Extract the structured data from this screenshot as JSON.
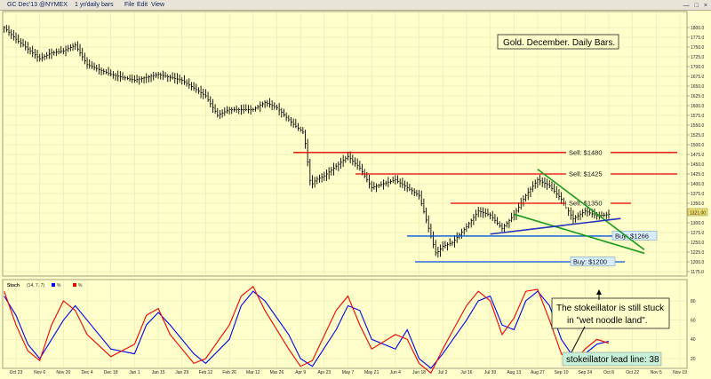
{
  "toolbar": {
    "symbol": "GC Dec'13 @NYMEX",
    "interval": "1 yr/daily bars",
    "menu": [
      "File",
      "Edit",
      "View"
    ]
  },
  "chart_data": [
    {
      "type": "ohlc",
      "title": "Gold. December. Daily Bars.",
      "ylim": [
        1175,
        1825
      ],
      "x_labels": [
        "Oct 23",
        "Nov 6",
        "Nov 20",
        "Dec 4",
        "Dec 18",
        "Jan 1",
        "Jan 15",
        "Jan 29",
        "Feb 12",
        "Feb 26",
        "Mar 12",
        "Mar 26",
        "Apr 9",
        "Apr 23",
        "May 7",
        "May 21",
        "Jun 4",
        "Jun 18",
        "Jul 2",
        "Jul 16",
        "Jul 30",
        "Aug 13",
        "Aug 27",
        "Sep 10",
        "Sep 24",
        "Oct 8",
        "Oct 22",
        "Nov 5",
        "Nov 19"
      ],
      "y_ticks": [
        1175,
        1200,
        1225,
        1250,
        1275,
        1300,
        1325,
        1350,
        1375,
        1400,
        1425,
        1450,
        1475,
        1500,
        1525,
        1550,
        1575,
        1600,
        1625,
        1650,
        1675,
        1700,
        1725,
        1750,
        1775,
        1800
      ],
      "last_price_label": "1321.00",
      "close_path": [
        [
          "Oct 16",
          1800
        ],
        [
          "Oct 23",
          1770
        ],
        [
          "Nov 6",
          1720
        ],
        [
          "Nov 13",
          1735
        ],
        [
          "Nov 20",
          1740
        ],
        [
          "Nov 27",
          1755
        ],
        [
          "Dec 4",
          1705
        ],
        [
          "Dec 18",
          1680
        ],
        [
          "Jan 1",
          1665
        ],
        [
          "Jan 15",
          1680
        ],
        [
          "Jan 29",
          1665
        ],
        [
          "Feb 12",
          1625
        ],
        [
          "Feb 19",
          1575
        ],
        [
          "Feb 26",
          1590
        ],
        [
          "Mar 12",
          1590
        ],
        [
          "Mar 19",
          1608
        ],
        [
          "Mar 26",
          1595
        ],
        [
          "Apr 4",
          1555
        ],
        [
          "Apr 11",
          1530
        ],
        [
          "Apr 15",
          1395
        ],
        [
          "Apr 18",
          1410
        ],
        [
          "Apr 23",
          1420
        ],
        [
          "May 7",
          1470
        ],
        [
          "May 14",
          1440
        ],
        [
          "May 21",
          1390
        ],
        [
          "Jun 4",
          1410
        ],
        [
          "Jun 18",
          1370
        ],
        [
          "Jun 24",
          1280
        ],
        [
          "Jun 28",
          1220
        ],
        [
          "Jul 2",
          1240
        ],
        [
          "Jul 8",
          1250
        ],
        [
          "Jul 16",
          1290
        ],
        [
          "Jul 23",
          1330
        ],
        [
          "Jul 30",
          1320
        ],
        [
          "Aug 6",
          1285
        ],
        [
          "Aug 13",
          1320
        ],
        [
          "Aug 20",
          1370
        ],
        [
          "Aug 27",
          1410
        ],
        [
          "Sep 3",
          1395
        ],
        [
          "Sep 10",
          1360
        ],
        [
          "Sep 17",
          1310
        ],
        [
          "Sep 24",
          1330
        ],
        [
          "Oct 1",
          1318
        ],
        [
          "Oct 8",
          1321
        ]
      ],
      "levels": [
        {
          "label": "Sell: $1480",
          "value": 1480,
          "color": "#e60000"
        },
        {
          "label": "Sell: $1425",
          "value": 1425,
          "color": "#e60000"
        },
        {
          "label": "Sell: $1350",
          "value": 1350,
          "color": "#e60000"
        },
        {
          "label": "Buy: $1266",
          "value": 1266,
          "color": "#0055dd"
        },
        {
          "label": "Buy: $1200",
          "value": 1200,
          "color": "#0055dd"
        }
      ],
      "trendlines": [
        {
          "color": "#1a9a1a",
          "points": [
            [
              "Aug 27",
              1437
            ],
            [
              "Oct 29",
              1231
            ]
          ]
        },
        {
          "color": "#1a9a1a",
          "points": [
            [
              "Aug 13",
              1322
            ],
            [
              "Oct 29",
              1222
            ]
          ]
        },
        {
          "color": "#2233bb",
          "points": [
            [
              "Jul 30",
              1271
            ],
            [
              "Oct 15",
              1311
            ]
          ]
        }
      ]
    },
    {
      "type": "line",
      "title": "Stoch",
      "params": "(14, 7, 7)",
      "legend": [
        {
          "name": "%",
          "color": "#0000ee"
        },
        {
          "name": "%",
          "color": "#ee0000"
        }
      ],
      "ylim": [
        0,
        100
      ],
      "y_ticks": [
        20,
        40,
        60,
        80
      ],
      "annotation": "The stokeillator is still stuck in \"wet noodle land\".",
      "lead_line_label": "stokeillator lead line: 38",
      "lead_value": 38,
      "series": [
        {
          "name": "blue",
          "color": "#0000ee",
          "points": [
            [
              "Oct 16",
              85
            ],
            [
              "Oct 23",
              65
            ],
            [
              "Oct 30",
              35
            ],
            [
              "Nov 6",
              20
            ],
            [
              "Nov 20",
              60
            ],
            [
              "Nov 27",
              75
            ],
            [
              "Dec 4",
              60
            ],
            [
              "Dec 18",
              30
            ],
            [
              "Jan 1",
              25
            ],
            [
              "Jan 8",
              55
            ],
            [
              "Jan 15",
              68
            ],
            [
              "Jan 22",
              55
            ],
            [
              "Feb 5",
              25
            ],
            [
              "Feb 12",
              15
            ],
            [
              "Feb 26",
              40
            ],
            [
              "Mar 5",
              75
            ],
            [
              "Mar 12",
              90
            ],
            [
              "Mar 19",
              80
            ],
            [
              "Apr 2",
              45
            ],
            [
              "Apr 9",
              20
            ],
            [
              "Apr 16",
              12
            ],
            [
              "Apr 30",
              50
            ],
            [
              "May 7",
              75
            ],
            [
              "May 14",
              70
            ],
            [
              "May 21",
              40
            ],
            [
              "Jun 4",
              30
            ],
            [
              "Jun 11",
              50
            ],
            [
              "Jun 18",
              20
            ],
            [
              "Jun 25",
              10
            ],
            [
              "Jul 2",
              25
            ],
            [
              "Jul 16",
              60
            ],
            [
              "Jul 23",
              80
            ],
            [
              "Jul 30",
              85
            ],
            [
              "Aug 6",
              55
            ],
            [
              "Aug 13",
              50
            ],
            [
              "Aug 20",
              80
            ],
            [
              "Aug 27",
              90
            ],
            [
              "Sep 3",
              75
            ],
            [
              "Sep 10",
              40
            ],
            [
              "Sep 17",
              22
            ],
            [
              "Sep 24",
              25
            ],
            [
              "Oct 1",
              35
            ],
            [
              "Oct 8",
              38
            ]
          ]
        },
        {
          "name": "red",
          "color": "#ee0000",
          "points": [
            [
              "Oct 16",
              90
            ],
            [
              "Oct 23",
              55
            ],
            [
              "Oct 30",
              28
            ],
            [
              "Nov 6",
              18
            ],
            [
              "Nov 13",
              55
            ],
            [
              "Nov 20",
              80
            ],
            [
              "Nov 27",
              70
            ],
            [
              "Dec 4",
              45
            ],
            [
              "Dec 18",
              22
            ],
            [
              "Jan 1",
              35
            ],
            [
              "Jan 8",
              65
            ],
            [
              "Jan 15",
              72
            ],
            [
              "Jan 22",
              45
            ],
            [
              "Feb 5",
              15
            ],
            [
              "Feb 12",
              20
            ],
            [
              "Feb 26",
              55
            ],
            [
              "Mar 5",
              85
            ],
            [
              "Mar 12",
              95
            ],
            [
              "Mar 19",
              70
            ],
            [
              "Apr 2",
              30
            ],
            [
              "Apr 9",
              12
            ],
            [
              "Apr 16",
              18
            ],
            [
              "Apr 30",
              70
            ],
            [
              "May 7",
              85
            ],
            [
              "May 14",
              55
            ],
            [
              "May 21",
              30
            ],
            [
              "Jun 4",
              45
            ],
            [
              "Jun 11",
              40
            ],
            [
              "Jun 18",
              15
            ],
            [
              "Jun 25",
              5
            ],
            [
              "Jul 2",
              30
            ],
            [
              "Jul 16",
              75
            ],
            [
              "Jul 23",
              90
            ],
            [
              "Jul 30",
              80
            ],
            [
              "Aug 6",
              45
            ],
            [
              "Aug 13",
              62
            ],
            [
              "Aug 20",
              90
            ],
            [
              "Aug 27",
              92
            ],
            [
              "Sep 3",
              60
            ],
            [
              "Sep 10",
              25
            ],
            [
              "Sep 17",
              15
            ],
            [
              "Sep 24",
              30
            ],
            [
              "Oct 1",
              40
            ],
            [
              "Oct 8",
              36
            ]
          ]
        }
      ]
    }
  ]
}
